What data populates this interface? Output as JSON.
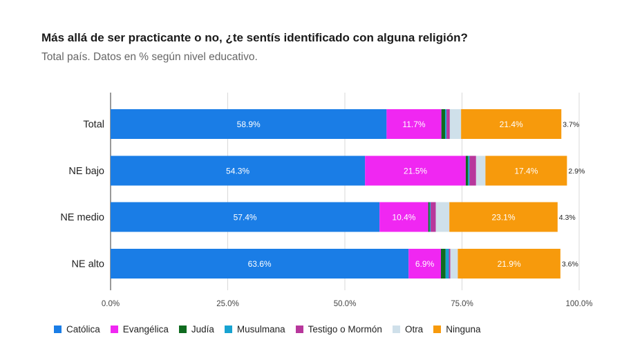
{
  "chart_data": {
    "type": "bar",
    "orientation": "horizontal",
    "stacked": true,
    "title": "Más allá de ser practicante o no, ¿te sentís identificado con alguna religión?",
    "subtitle": "Total país. Datos en % según nivel educativo.",
    "categories": [
      "Total",
      "NE bajo",
      "NE medio",
      "NE alto"
    ],
    "series": [
      {
        "name": "Católica",
        "color": "#1a7de6",
        "values": [
          58.9,
          54.3,
          57.4,
          63.6
        ],
        "labels": [
          "58.9%",
          "54.3%",
          "57.4%",
          "63.6%"
        ]
      },
      {
        "name": "Evangélica",
        "color": "#f027f2",
        "values": [
          11.7,
          21.5,
          10.4,
          6.9
        ],
        "labels": [
          "11.7%",
          "21.5%",
          "10.4%",
          "6.9%"
        ]
      },
      {
        "name": "Judía",
        "color": "#0f6b1f",
        "values": [
          0.8,
          0.5,
          0.3,
          1.0
        ],
        "labels": [
          "",
          "",
          "",
          ""
        ]
      },
      {
        "name": "Musulmana",
        "color": "#17a3d1",
        "values": [
          0.3,
          0.3,
          0.2,
          0.7
        ],
        "labels": [
          "",
          "",
          "",
          ""
        ]
      },
      {
        "name": "Testigo o Mormón",
        "color": "#b8379c",
        "values": [
          0.7,
          1.4,
          1.1,
          0.3
        ],
        "labels": [
          "",
          "",
          "",
          ""
        ]
      },
      {
        "name": "Otra",
        "color": "#cfe0ea",
        "values": [
          2.4,
          2.0,
          2.9,
          1.6
        ],
        "labels": [
          "",
          "",
          "",
          ""
        ]
      },
      {
        "name": "Ninguna",
        "color": "#f79a0c",
        "values": [
          21.4,
          17.4,
          23.1,
          21.9
        ],
        "labels": [
          "21.4%",
          "17.4%",
          "23.1%",
          "21.9%"
        ]
      }
    ],
    "end_labels": [
      "3.7%",
      "2.9%",
      "4.3%",
      "3.6%"
    ],
    "xlim": [
      0,
      100
    ],
    "xticks": [
      0,
      25,
      50,
      75,
      100
    ],
    "xtick_labels": [
      "0.0%",
      "25.0%",
      "50.0%",
      "75.0%",
      "100.0%"
    ],
    "grid": "vertical",
    "legend_position": "bottom"
  }
}
